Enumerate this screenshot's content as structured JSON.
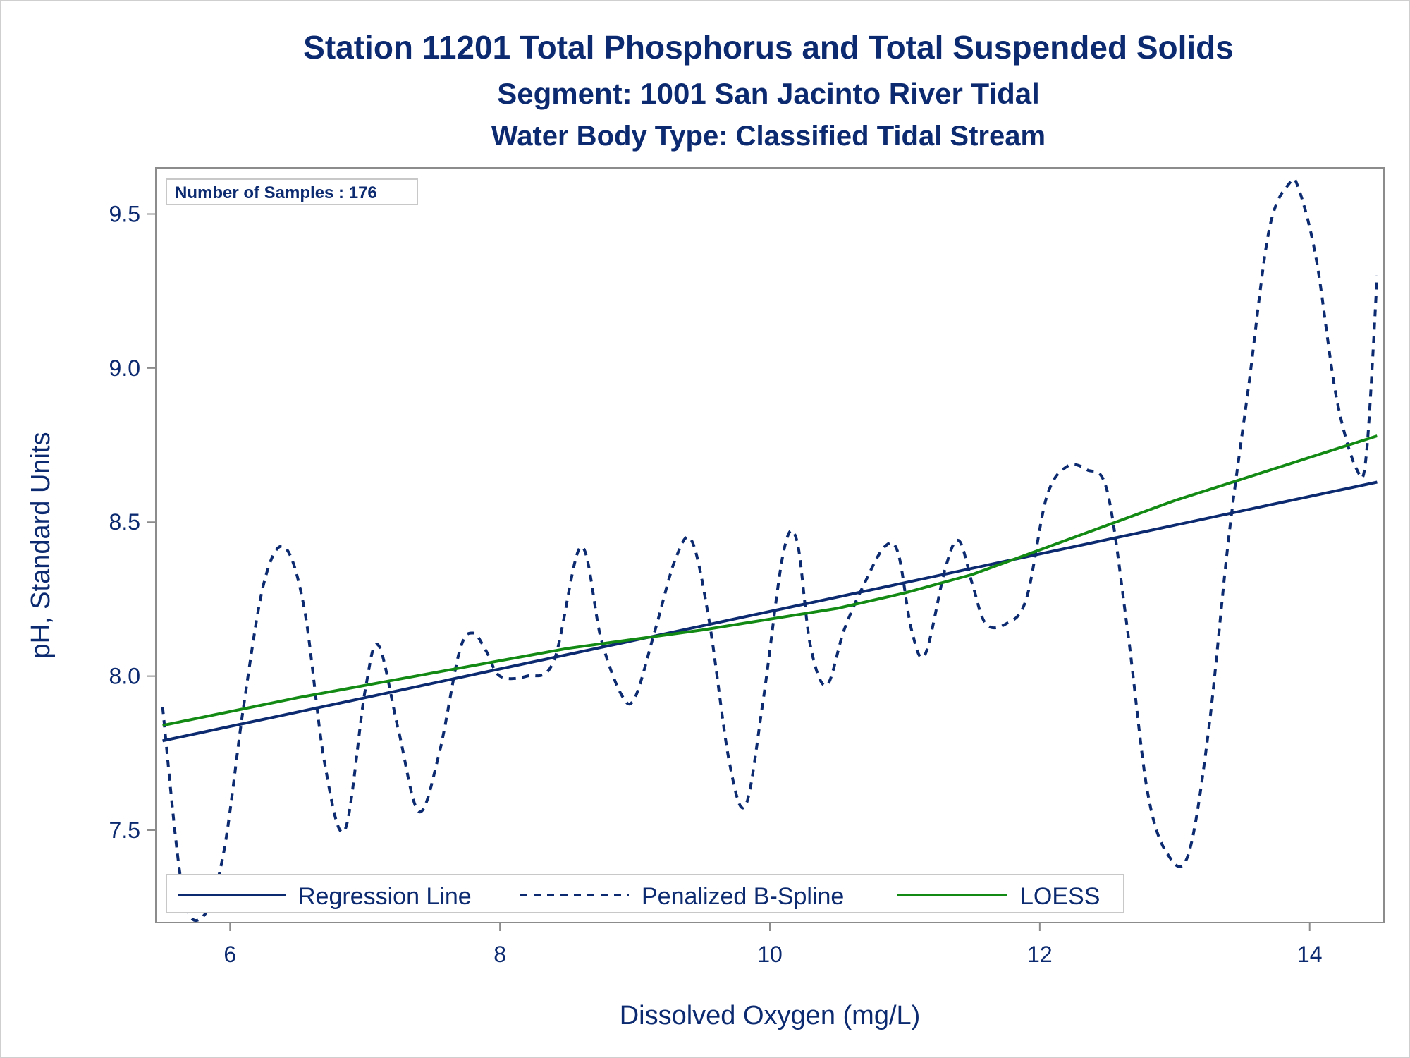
{
  "titles": {
    "line1": "Station 11201  Total Phosphorus and Total Suspended Solids",
    "line2": "Segment: 1001  San Jacinto River Tidal",
    "line3": "Water Body Type: Classified Tidal Stream"
  },
  "inset": {
    "label": "Number of Samples : 176"
  },
  "colors": {
    "navy": "#0b2a6f",
    "green": "#138a13",
    "frame": "#8c8c8c"
  },
  "chart_data": {
    "type": "line",
    "xlabel": "Dissolved Oxygen (mg/L)",
    "ylabel": "pH, Standard Units",
    "xlim": [
      5.45,
      14.55
    ],
    "ylim": [
      7.2,
      9.65
    ],
    "xticks": [
      6,
      8,
      10,
      12,
      14
    ],
    "yticks": [
      7.5,
      8.0,
      8.5,
      9.0,
      9.5
    ],
    "x_tick_labels": [
      "6",
      "8",
      "10",
      "12",
      "14"
    ],
    "y_tick_labels": [
      "7.5",
      "8.0",
      "8.5",
      "9.0",
      "9.5"
    ],
    "grid": false,
    "legend_position": "bottom-left inside",
    "series": [
      {
        "name": "Regression Line",
        "style": "solid",
        "color": "#0b2a6f",
        "x": [
          5.5,
          14.5
        ],
        "y": [
          7.79,
          8.63
        ]
      },
      {
        "name": "Penalized B-Spline",
        "style": "dashed",
        "color": "#0b2a6f",
        "x": [
          5.5,
          5.65,
          5.8,
          5.95,
          6.1,
          6.25,
          6.4,
          6.55,
          6.7,
          6.85,
          7.0,
          7.1,
          7.25,
          7.4,
          7.55,
          7.7,
          7.8,
          7.9,
          8.0,
          8.2,
          8.4,
          8.6,
          8.75,
          8.9,
          9.0,
          9.15,
          9.3,
          9.42,
          9.55,
          9.7,
          9.82,
          9.95,
          10.1,
          10.2,
          10.3,
          10.42,
          10.55,
          10.7,
          10.85,
          10.95,
          11.05,
          11.15,
          11.3,
          11.4,
          11.5,
          11.6,
          11.75,
          11.9,
          12.05,
          12.2,
          12.35,
          12.5,
          12.65,
          12.8,
          12.95,
          13.1,
          13.25,
          13.4,
          13.55,
          13.7,
          13.85,
          13.92,
          14.05,
          14.2,
          14.35,
          14.42,
          14.5
        ],
        "y": [
          7.9,
          7.3,
          7.22,
          7.42,
          7.9,
          8.3,
          8.42,
          8.22,
          7.72,
          7.5,
          7.95,
          8.1,
          7.82,
          7.56,
          7.75,
          8.08,
          8.14,
          8.08,
          8.0,
          8.0,
          8.05,
          8.42,
          8.12,
          7.94,
          7.93,
          8.15,
          8.38,
          8.44,
          8.18,
          7.72,
          7.58,
          7.92,
          8.4,
          8.44,
          8.1,
          7.97,
          8.15,
          8.3,
          8.42,
          8.4,
          8.15,
          8.07,
          8.35,
          8.44,
          8.3,
          8.17,
          8.17,
          8.25,
          8.58,
          8.68,
          8.67,
          8.6,
          8.15,
          7.62,
          7.42,
          7.42,
          7.82,
          8.45,
          8.95,
          9.45,
          9.6,
          9.58,
          9.35,
          8.9,
          8.67,
          8.72,
          9.3
        ]
      },
      {
        "name": "LOESS",
        "style": "solid",
        "color": "#138a13",
        "x": [
          5.5,
          6.5,
          7.5,
          8.5,
          9.5,
          10.5,
          11.0,
          11.5,
          12.0,
          12.5,
          13.0,
          13.5,
          14.0,
          14.5
        ],
        "y": [
          7.84,
          7.93,
          8.01,
          8.09,
          8.15,
          8.22,
          8.27,
          8.33,
          8.41,
          8.49,
          8.57,
          8.64,
          8.71,
          8.78
        ]
      }
    ]
  }
}
